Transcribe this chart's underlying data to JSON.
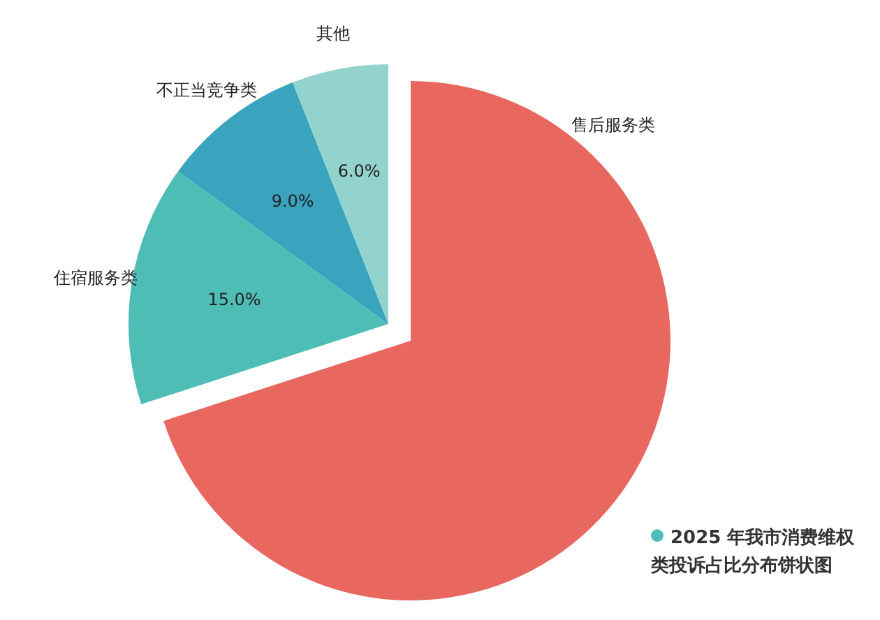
{
  "chart_data": {
    "type": "pie",
    "title": "2025 年我市消费维权类投诉占比分布饼状图",
    "categories": [
      "售后服务类",
      "住宿服务类",
      "不正当竞争类",
      "其他"
    ],
    "values": [
      70,
      15,
      9,
      6
    ],
    "colors": [
      "#e8675f",
      "#4dbdb5",
      "#3aa3bd",
      "#93d3cd"
    ],
    "value_labels": [
      null,
      "15.0%",
      "9.0%",
      "6.0%"
    ]
  }
}
